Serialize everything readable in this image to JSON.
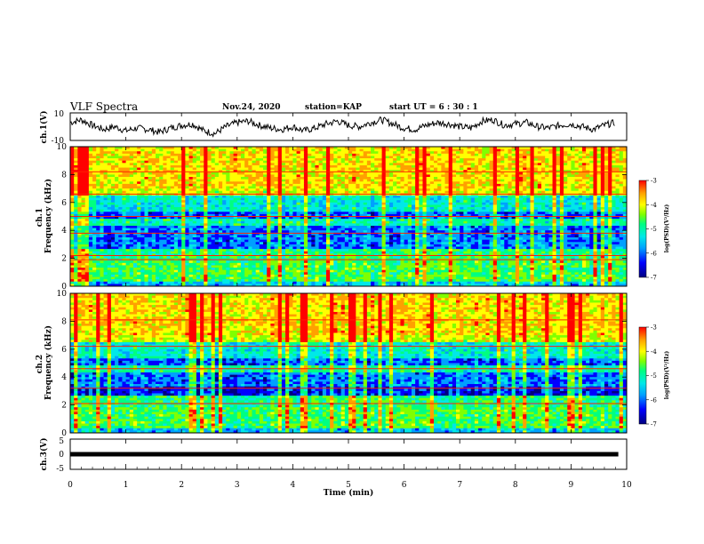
{
  "header": {
    "title": "VLF Spectra",
    "date": "Nov.24, 2020",
    "station": "station=KAP",
    "start": "start UT =  6 : 30 : 1"
  },
  "chart_data": [
    {
      "type": "line",
      "panel": "ch1-waveform",
      "ylabel": "ch.1(V)",
      "ylim": [
        -10,
        10
      ],
      "yticks": [
        "10",
        "-10"
      ],
      "xlim": [
        0,
        10
      ],
      "xlabel": "",
      "series": [
        {
          "x": [
            0,
            0.2,
            0.4,
            0.6,
            0.8,
            1.0,
            1.2,
            1.4,
            1.6,
            1.8,
            2.0,
            2.2,
            2.4,
            2.6,
            2.8,
            3.0,
            3.2,
            3.4,
            3.6,
            3.8,
            4.0,
            4.2,
            4.4,
            4.6,
            4.8,
            5.0,
            5.2,
            5.4,
            5.6,
            5.8,
            6.0,
            6.2,
            6.4,
            6.6,
            6.8,
            7.0,
            7.2,
            7.4,
            7.6,
            7.8,
            8.0,
            8.2,
            8.4,
            8.6,
            8.8,
            9.0,
            9.2,
            9.4,
            9.6,
            9.8
          ],
          "values": [
            3,
            5,
            1,
            -2,
            0,
            -3,
            -1,
            -2,
            -4,
            -1,
            1,
            2,
            -3,
            -5,
            0,
            3,
            4,
            1,
            -1,
            -2,
            0,
            -3,
            -1,
            2,
            4,
            1,
            0,
            3,
            5,
            2,
            -1,
            -2,
            1,
            3,
            2,
            0,
            -1,
            4,
            5,
            1,
            2,
            3,
            0,
            -1,
            1,
            2,
            0,
            -2,
            1,
            3
          ]
        }
      ]
    },
    {
      "type": "heatmap",
      "panel": "ch1-spectrogram",
      "ylabel": "ch.1\nFrequency (kHz)",
      "ylim": [
        0,
        10
      ],
      "yticks": [
        "0",
        "2",
        "4",
        "6",
        "8",
        "10"
      ],
      "xlim": [
        0,
        9.85
      ],
      "colorbar": {
        "label": "log(PSD)(V²/Hz)",
        "range": [
          -7,
          -3
        ],
        "ticks": [
          "-3",
          "-4",
          "-5",
          "-6",
          "-7"
        ]
      }
    },
    {
      "type": "heatmap",
      "panel": "ch2-spectrogram",
      "ylabel": "ch.2\nFrequency (kHz)",
      "ylim": [
        0,
        10
      ],
      "yticks": [
        "0",
        "2",
        "4",
        "6",
        "8",
        "10"
      ],
      "xlim": [
        0,
        9.85
      ],
      "colorbar": {
        "label": "log(PSD)(V²/Hz)",
        "range": [
          -7,
          -3
        ],
        "ticks": [
          "-3",
          "-4",
          "-5",
          "-6",
          "-7"
        ]
      }
    },
    {
      "type": "line",
      "panel": "ch3-waveform",
      "ylabel": "ch.3(V)",
      "ylim": [
        -5,
        5
      ],
      "yticks": [
        "5",
        "0",
        "-5"
      ],
      "xlim": [
        0,
        10
      ],
      "xlabel": "Time (min)",
      "xticks": [
        "0",
        "1",
        "2",
        "3",
        "4",
        "5",
        "6",
        "7",
        "8",
        "9",
        "10"
      ],
      "series": [
        {
          "x": [
            0,
            9.85
          ],
          "values": [
            0,
            0
          ]
        }
      ]
    }
  ],
  "colors": {
    "colormap": [
      "#000080",
      "#0000ff",
      "#00a0ff",
      "#00e8e8",
      "#00ff80",
      "#80ff00",
      "#ffff00",
      "#ffa000",
      "#ff0000"
    ]
  }
}
